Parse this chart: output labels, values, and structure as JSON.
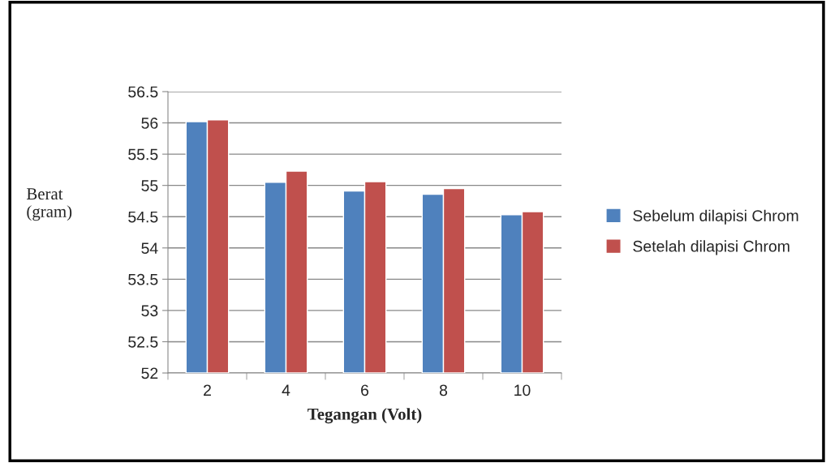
{
  "chart_data": {
    "type": "bar",
    "xlabel": "Tegangan (Volt)",
    "ylabel": "Berat\n(gram)",
    "categories": [
      "2",
      "4",
      "6",
      "8",
      "10"
    ],
    "series": [
      {
        "name": "Sebelum dilapisi Chrom",
        "color": "#4f81bd",
        "values": [
          56.02,
          55.05,
          54.91,
          54.86,
          54.53
        ]
      },
      {
        "name": "Setelah dilapisi Chrom",
        "color": "#c0504d",
        "values": [
          56.05,
          55.23,
          55.06,
          54.95,
          54.58
        ]
      }
    ],
    "ylim": [
      52,
      56.5
    ],
    "yticks": [
      52,
      52.5,
      53,
      53.5,
      54,
      54.5,
      55,
      55.5,
      56,
      56.5
    ],
    "grid": "y",
    "legend": "right"
  }
}
